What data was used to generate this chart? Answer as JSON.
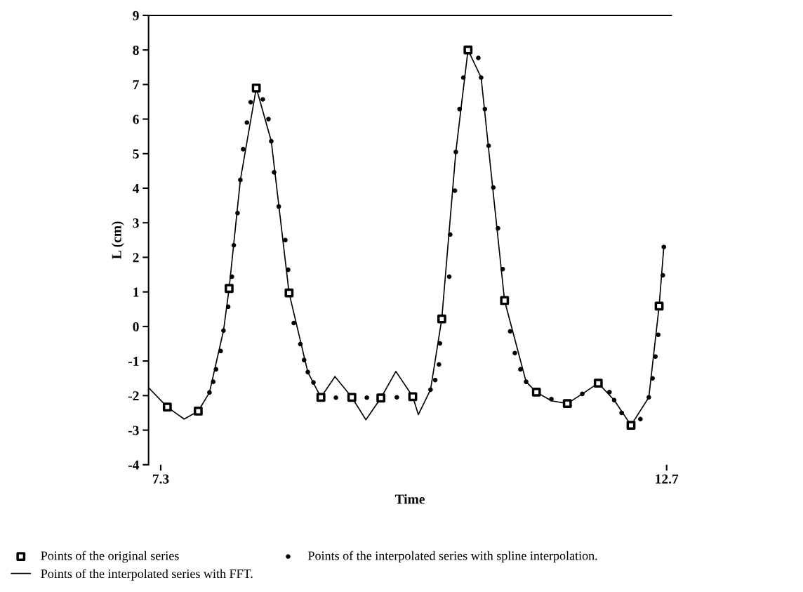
{
  "chart_data": {
    "type": "line",
    "xlabel": "Time",
    "ylabel": "L (cm)",
    "xlim": [
      7.17,
      12.75
    ],
    "xticks": [
      7.3,
      12.7
    ],
    "ylim": [
      -4,
      9
    ],
    "yticks": [
      -4,
      -3,
      -2,
      -1,
      0,
      1,
      2,
      3,
      4,
      5,
      6,
      7,
      8,
      9
    ],
    "grid": false,
    "legend": "bottom",
    "series": [
      {
        "name": "Points of the interpolated series with FFT.",
        "color": "#000000",
        "marker": "none",
        "line_style": "solid",
        "x": [
          7.17,
          7.37,
          7.55,
          7.7,
          7.82,
          7.97,
          8.03,
          8.15,
          8.32,
          8.48,
          8.67,
          8.87,
          9.01,
          9.16,
          9.34,
          9.49,
          9.65,
          9.81,
          9.99,
          10.05,
          10.18,
          10.3,
          10.45,
          10.58,
          10.72,
          10.97,
          11.2,
          11.31,
          11.47,
          11.64,
          11.8,
          11.97,
          12.14,
          12.32,
          12.51,
          12.62,
          12.67
        ],
        "values": [
          -1.77,
          -2.33,
          -2.68,
          -2.45,
          -1.91,
          -0.12,
          1.1,
          4.24,
          6.9,
          5.36,
          0.97,
          -1.32,
          -2.05,
          -1.45,
          -2.05,
          -2.7,
          -2.07,
          -1.3,
          -2.03,
          -2.55,
          -1.83,
          0.22,
          5.05,
          8.0,
          7.2,
          0.75,
          -1.6,
          -1.9,
          -2.15,
          -2.23,
          -1.95,
          -1.64,
          -2.13,
          -2.86,
          -2.05,
          0.59,
          2.3
        ]
      },
      {
        "name": "Points of the interpolated series with spline interpolation.",
        "type": "scatter",
        "color": "#000000",
        "marker": "circle",
        "x": [
          7.82,
          7.86,
          7.89,
          7.94,
          7.97,
          8.02,
          8.06,
          8.08,
          8.12,
          8.15,
          8.18,
          8.22,
          8.26,
          8.39,
          8.45,
          8.48,
          8.51,
          8.56,
          8.63,
          8.66,
          8.72,
          8.79,
          8.83,
          8.87,
          8.93,
          9.17,
          9.5,
          9.82,
          10.18,
          10.23,
          10.27,
          10.28,
          10.38,
          10.39,
          10.44,
          10.45,
          10.49,
          10.53,
          10.69,
          10.72,
          10.76,
          10.8,
          10.85,
          10.9,
          10.95,
          11.03,
          11.08,
          11.14,
          11.2,
          11.47,
          11.8,
          12.09,
          12.14,
          12.22,
          12.42,
          12.51,
          12.55,
          12.58,
          12.61,
          12.66,
          12.67
        ],
        "values": [
          -1.91,
          -1.6,
          -1.24,
          -0.71,
          -0.12,
          0.57,
          1.44,
          2.35,
          3.28,
          4.24,
          5.13,
          5.9,
          6.49,
          6.57,
          6.0,
          5.36,
          4.46,
          3.47,
          2.5,
          1.64,
          0.1,
          -0.51,
          -0.97,
          -1.32,
          -1.62,
          -2.06,
          -2.06,
          -2.05,
          -1.83,
          -1.55,
          -1.1,
          -0.49,
          1.44,
          2.66,
          3.93,
          5.05,
          6.29,
          7.2,
          7.77,
          7.2,
          6.29,
          5.23,
          4.02,
          2.84,
          1.66,
          -0.14,
          -0.77,
          -1.24,
          -1.6,
          -2.1,
          -1.95,
          -1.9,
          -2.13,
          -2.5,
          -2.68,
          -2.05,
          -1.5,
          -0.87,
          -0.24,
          1.48,
          2.3
        ]
      },
      {
        "name": "Points of the original series",
        "type": "scatter",
        "color": "#000000",
        "marker": "square",
        "x": [
          7.37,
          7.7,
          8.03,
          8.32,
          8.67,
          9.01,
          9.34,
          9.65,
          9.99,
          10.3,
          10.58,
          10.97,
          11.31,
          11.64,
          11.97,
          12.32,
          12.62
        ],
        "values": [
          -2.33,
          -2.45,
          1.1,
          6.9,
          0.97,
          -2.05,
          -2.05,
          -2.07,
          -2.03,
          0.22,
          8.0,
          0.75,
          -1.9,
          -2.23,
          -1.64,
          -2.86,
          0.59
        ]
      }
    ]
  }
}
